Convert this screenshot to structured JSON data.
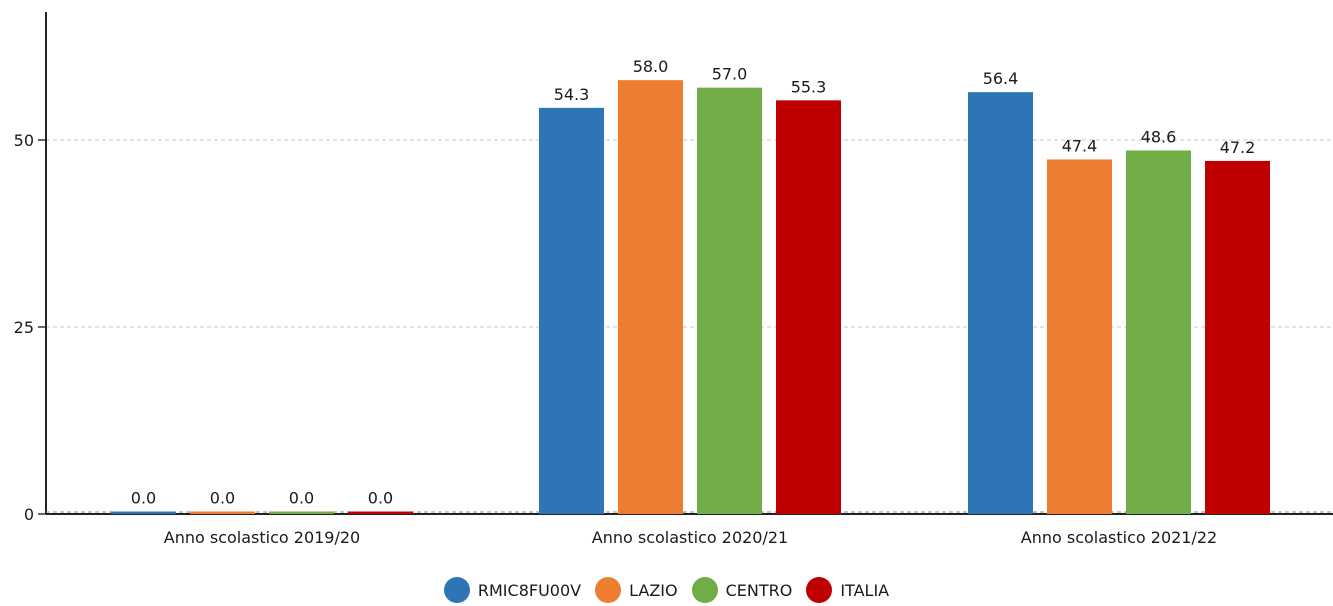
{
  "chart_data": {
    "type": "bar",
    "categories": [
      "Anno scolastico 2019/20",
      "Anno scolastico 2020/21",
      "Anno scolastico 2021/22"
    ],
    "series": [
      {
        "name": "RMIC8FU00V",
        "color": "#2e75b6",
        "values": [
          0.0,
          54.3,
          56.4
        ]
      },
      {
        "name": "LAZIO",
        "color": "#ed7d31",
        "values": [
          0.0,
          58.0,
          47.4
        ]
      },
      {
        "name": "CENTRO",
        "color": "#70ad47",
        "values": [
          0.0,
          57.0,
          48.6
        ]
      },
      {
        "name": "ITALIA",
        "color": "#c00000",
        "values": [
          0.0,
          55.3,
          47.2
        ]
      }
    ],
    "y_ticks": [
      0,
      25,
      50
    ],
    "ylim": [
      0,
      67
    ],
    "grid": true,
    "legend_position": "bottom-center",
    "title": "",
    "xlabel": "",
    "ylabel": ""
  }
}
